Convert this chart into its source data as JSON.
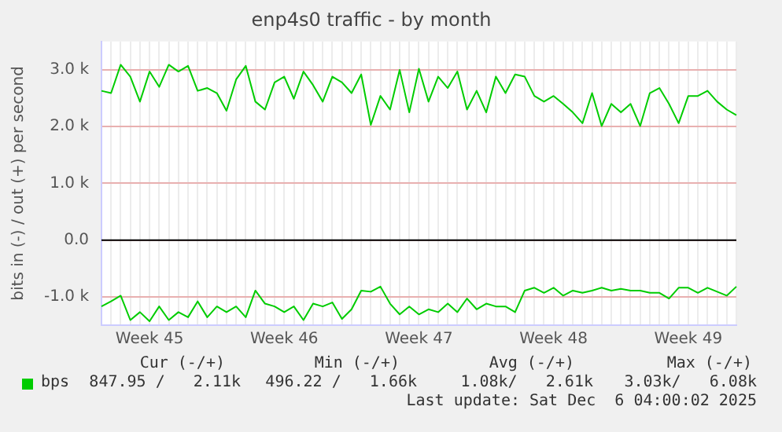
{
  "chart_data": {
    "type": "line",
    "title": "enp4s0 traffic - by month",
    "ylabel": "bits in (-) / out (+) per second",
    "categories": [
      null,
      null,
      null,
      null,
      null,
      "Week 45",
      null,
      null,
      null,
      null,
      null,
      null,
      null,
      null,
      null,
      null,
      null,
      null,
      null,
      "Week 46",
      null,
      null,
      null,
      null,
      null,
      null,
      null,
      null,
      null,
      null,
      null,
      null,
      null,
      "Week 47",
      null,
      null,
      null,
      null,
      null,
      null,
      null,
      null,
      null,
      null,
      null,
      null,
      null,
      "Week 48",
      null,
      null,
      null,
      null,
      null,
      null,
      null,
      null,
      null,
      null,
      null,
      null,
      null,
      "Week 49",
      null,
      null,
      null,
      null,
      null
    ],
    "ylim": [
      -1500,
      3500
    ],
    "yticks": [
      {
        "value": -1000,
        "label": "-1.0 k"
      },
      {
        "value": 0,
        "label": "0.0"
      },
      {
        "value": 1000,
        "label": "1.0 k"
      },
      {
        "value": 2000,
        "label": "2.0 k"
      },
      {
        "value": 3000,
        "label": "3.0 k"
      }
    ],
    "grid": true,
    "legend": "bottom left",
    "marker": "none",
    "line_style": "solid",
    "ref_lines": [
      {
        "axis": "y",
        "value": 0,
        "color": "#000000"
      }
    ],
    "series": [
      {
        "name": "bps",
        "color": "#00cc00",
        "values": [
          2630,
          2590,
          3090,
          2880,
          2440,
          2970,
          2700,
          3090,
          2970,
          3070,
          2630,
          2680,
          2590,
          2280,
          2830,
          3070,
          2440,
          2300,
          2780,
          2880,
          2490,
          2970,
          2730,
          2440,
          2880,
          2780,
          2590,
          2920,
          2030,
          2540,
          2300,
          3000,
          2250,
          3020,
          2440,
          2880,
          2680,
          2970,
          2300,
          2630,
          2250,
          2880,
          2590,
          2920,
          2880,
          2540,
          2440,
          2540,
          2400,
          2250,
          2060,
          2590,
          2010,
          2400,
          2250,
          2400,
          2010,
          2590,
          2680,
          2400,
          2060,
          2540,
          2540,
          2630,
          2440,
          2300,
          2200
        ]
      },
      {
        "color": "#00cc00",
        "values": [
          -1170,
          -1080,
          -980,
          -1410,
          -1270,
          -1430,
          -1170,
          -1410,
          -1270,
          -1360,
          -1080,
          -1360,
          -1170,
          -1270,
          -1170,
          -1360,
          -890,
          -1120,
          -1170,
          -1270,
          -1170,
          -1410,
          -1120,
          -1170,
          -1100,
          -1390,
          -1220,
          -890,
          -910,
          -820,
          -1120,
          -1310,
          -1170,
          -1310,
          -1220,
          -1270,
          -1120,
          -1270,
          -1030,
          -1220,
          -1120,
          -1170,
          -1170,
          -1270,
          -890,
          -840,
          -930,
          -840,
          -980,
          -890,
          -930,
          -890,
          -840,
          -890,
          -860,
          -890,
          -890,
          -930,
          -930,
          -1030,
          -840,
          -840,
          -930,
          -840,
          -910,
          -980,
          -820
        ]
      }
    ],
    "annotations": [
      "Cur (-/+)",
      "Min (-/+)",
      "Avg (-/+)",
      "Max (-/+)",
      "847.95 /   2.11k",
      "496.22 /   1.66k",
      "1.08k/   2.61k",
      "3.03k/   6.08k",
      "Last update: Sat Dec  6 04:00:02 2025"
    ]
  }
}
